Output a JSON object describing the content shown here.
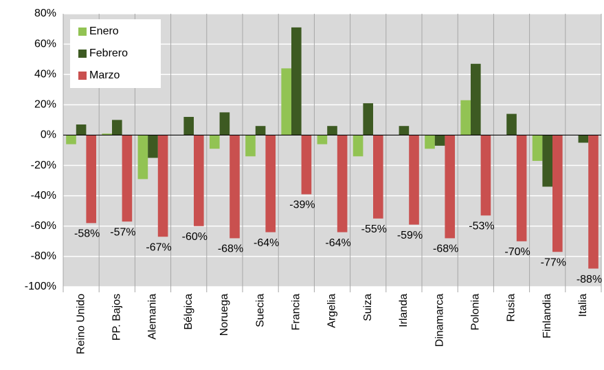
{
  "chart_data": {
    "type": "bar",
    "categories": [
      "Reino Unido",
      "PP. Bajos",
      "Alemania",
      "Bélgica",
      "Noruega",
      "Suecia",
      "Francia",
      "Argelia",
      "Suiza",
      "Irlanda",
      "Dinamarca",
      "Polonia",
      "Rusia",
      "Finlandia",
      "Italia"
    ],
    "series": [
      {
        "name": "Enero",
        "color": "#92c353",
        "values": [
          -6,
          1,
          -29,
          0,
          -9,
          -14,
          44,
          -6,
          -14,
          0,
          -9,
          23,
          0,
          -17,
          0
        ]
      },
      {
        "name": "Febrero",
        "color": "#3d5a22",
        "values": [
          7,
          10,
          -15,
          12,
          15,
          6,
          71,
          6,
          21,
          6,
          -7,
          47,
          14,
          -34,
          -5
        ]
      },
      {
        "name": "Marzo",
        "color": "#c9504f",
        "values": [
          -58,
          -57,
          -67,
          -60,
          -68,
          -64,
          -39,
          -64,
          -55,
          -59,
          -68,
          -53,
          -70,
          -77,
          -88
        ],
        "value_labels": [
          "-58%",
          "-57%",
          "-67%",
          "-60%",
          "-68%",
          "-64%",
          "-39%",
          "-64%",
          "-55%",
          "-59%",
          "-68%",
          "-53%",
          "-70%",
          "-77%",
          "-88%"
        ]
      }
    ],
    "ylim": [
      -100,
      80
    ],
    "yticks": [
      {
        "value": -100,
        "label": "-100%"
      },
      {
        "value": -80,
        "label": "-80%"
      },
      {
        "value": -60,
        "label": "-60%"
      },
      {
        "value": -40,
        "label": "-40%"
      },
      {
        "value": -20,
        "label": "-20%"
      },
      {
        "value": 0,
        "label": "0%"
      },
      {
        "value": 20,
        "label": "20%"
      },
      {
        "value": 40,
        "label": "40%"
      },
      {
        "value": 60,
        "label": "60%"
      },
      {
        "value": 80,
        "label": "80%"
      }
    ],
    "grid": true,
    "legend": "top-left"
  }
}
